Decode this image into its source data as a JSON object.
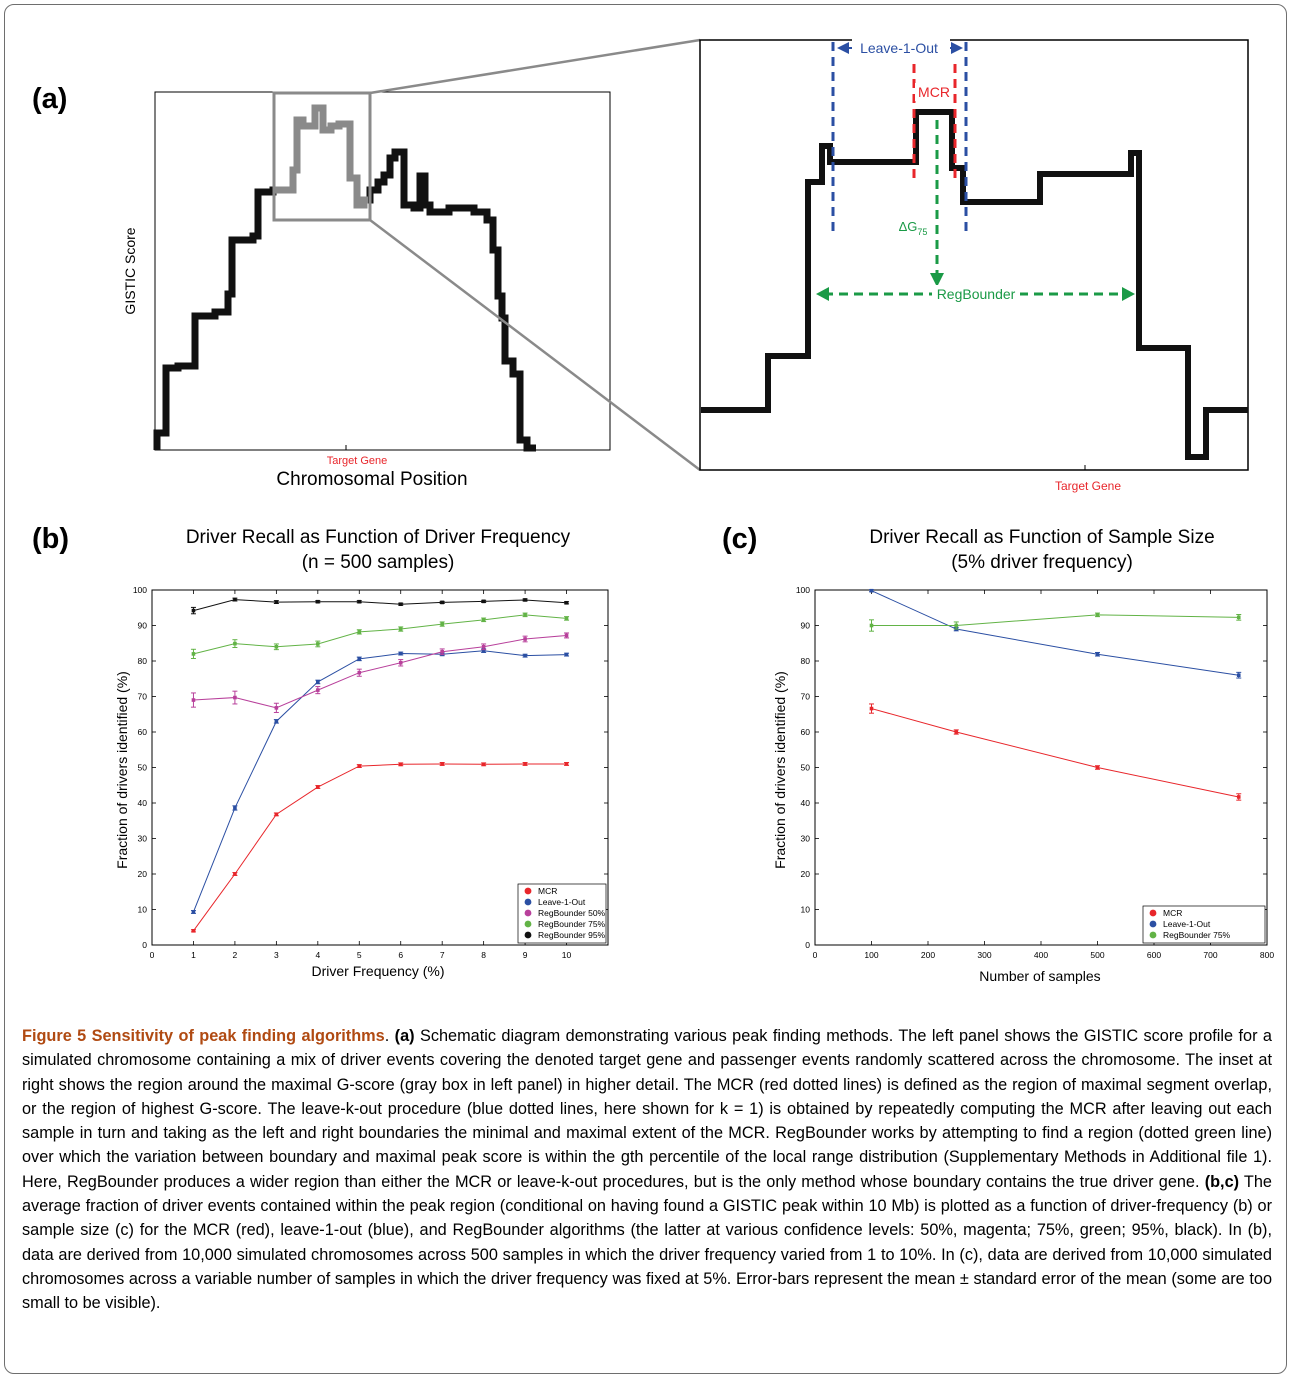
{
  "panel_a": {
    "label": "(a)",
    "y_label": "GISTIC Score",
    "x_label": "Chromosomal Position",
    "target_gene": "Target Gene",
    "inset_target_gene": "Target Gene",
    "leave_label": "Leave-1-Out",
    "mcr_label": "MCR",
    "delta_label": "ΔG",
    "delta_sub": "75",
    "regb_label": "RegBounder"
  },
  "chart_data": [
    {
      "type": "line",
      "panel": "(b)",
      "title": "Driver Recall as Function of Driver Frequency",
      "subtitle": "(n = 500 samples)",
      "xlabel": "Driver Frequency (%)",
      "ylabel": "Fraction of drivers identified (%)",
      "xlim": [
        0,
        11
      ],
      "ylim": [
        0,
        100
      ],
      "xticks": [
        0,
        1,
        2,
        3,
        4,
        5,
        6,
        7,
        8,
        9,
        10
      ],
      "yticks": [
        0,
        10,
        20,
        30,
        40,
        50,
        60,
        70,
        80,
        90,
        100
      ],
      "x": [
        1,
        2,
        3,
        4,
        5,
        6,
        7,
        8,
        9,
        10
      ],
      "legend_position": "bottom-right",
      "series": [
        {
          "name": "MCR",
          "color": "#e8262b",
          "values": [
            4,
            20,
            36.8,
            44.5,
            50.4,
            50.9,
            51.0,
            50.9,
            51.0,
            51.0
          ],
          "err": [
            0.3,
            0.4,
            0.4,
            0.4,
            0.4,
            0.4,
            0.4,
            0.4,
            0.4,
            0.4
          ]
        },
        {
          "name": "Leave-1-Out",
          "color": "#2b4fa3",
          "values": [
            9.3,
            38.6,
            63.0,
            74.1,
            80.6,
            82.1,
            81.9,
            82.9,
            81.5,
            81.8
          ],
          "err": [
            0.4,
            0.6,
            0.5,
            0.5,
            0.5,
            0.4,
            0.4,
            0.5,
            0.4,
            0.4
          ]
        },
        {
          "name": "RegBounder 50%",
          "color": "#b8409b",
          "values": [
            69.0,
            69.7,
            66.8,
            71.8,
            76.7,
            79.5,
            82.6,
            84.0,
            86.2,
            87.2
          ],
          "err": [
            2.0,
            1.8,
            1.3,
            1.0,
            1.0,
            0.9,
            0.8,
            0.8,
            0.8,
            0.7
          ]
        },
        {
          "name": "RegBounder 75%",
          "color": "#62b346",
          "values": [
            82.0,
            84.9,
            84.0,
            84.8,
            88.2,
            89.0,
            90.4,
            91.6,
            93.0,
            92.0
          ],
          "err": [
            1.3,
            1.1,
            0.8,
            0.8,
            0.6,
            0.6,
            0.6,
            0.5,
            0.5,
            0.5
          ]
        },
        {
          "name": "RegBounder 95%",
          "color": "#111111",
          "values": [
            94.2,
            97.3,
            96.6,
            96.7,
            96.7,
            96.0,
            96.5,
            96.8,
            97.2,
            96.4
          ],
          "err": [
            0.9,
            0.4,
            0.4,
            0.3,
            0.3,
            0.3,
            0.3,
            0.3,
            0.3,
            0.3
          ]
        }
      ]
    },
    {
      "type": "line",
      "panel": "(c)",
      "title": "Driver Recall as Function of Sample Size",
      "subtitle": "(5% driver frequency)",
      "xlabel": "Number of samples",
      "ylabel": "Fraction of drivers identified (%)",
      "xlim": [
        0,
        800
      ],
      "ylim": [
        0,
        100
      ],
      "xticks": [
        0,
        100,
        200,
        300,
        400,
        500,
        600,
        700,
        800
      ],
      "yticks": [
        0,
        10,
        20,
        30,
        40,
        50,
        60,
        70,
        80,
        90,
        100
      ],
      "x": [
        100,
        250,
        500,
        750
      ],
      "legend_position": "bottom-right",
      "series": [
        {
          "name": "MCR",
          "color": "#e8262b",
          "values": [
            66.6,
            60.0,
            50.0,
            41.7
          ],
          "err": [
            1.3,
            0.6,
            0.5,
            0.9
          ]
        },
        {
          "name": "Leave-1-Out",
          "color": "#2b4fa3",
          "values": [
            99.8,
            89.0,
            81.9,
            76.0
          ],
          "err": [
            0.3,
            0.5,
            0.5,
            0.8
          ]
        },
        {
          "name": "RegBounder 75%",
          "color": "#62b346",
          "values": [
            90.0,
            90.0,
            93.0,
            92.3
          ],
          "err": [
            1.6,
            1.0,
            0.5,
            0.8
          ]
        }
      ]
    }
  ],
  "caption": {
    "title": "Figure 5 Sensitivity of peak finding algorithms",
    "p1": ". ",
    "a_label": "(a)",
    "p2": " Schematic diagram demonstrating various peak finding methods. The left panel shows the GISTIC score profile for a simulated chromosome containing a mix of driver events covering the denoted target gene and passenger events randomly scattered across the chromosome. The inset at right shows the region around the maximal G-score (gray box in left panel) in higher detail. The MCR (red dotted lines) is defined as the region of maximal segment overlap, or the region of highest G-score. The leave-k-out procedure (blue dotted lines, here shown for k = 1) is obtained by repeatedly computing the MCR after leaving out each sample in turn and taking as the left and right boundaries the minimal and maximal extent of the MCR. RegBounder works by attempting to find a region (dotted green line) over which the variation between boundary and maximal peak score is within the gth percentile of the local range distribution (Supplementary Methods in Additional file 1). Here, RegBounder produces a wider region than either the MCR or leave-k-out procedures, but is the only method whose boundary contains the true driver gene. ",
    "bc_label": "(b,c)",
    "p3": " The average fraction of driver events contained within the peak region (conditional on having found a GISTIC peak within 10 Mb) is plotted as a function of driver-frequency (b) or sample size (c) for the MCR (red), leave-1-out (blue), and RegBounder algorithms (the latter at various confidence levels: 50%, magenta; 75%, green; 95%, black). In (b), data are derived from 10,000 simulated chromosomes across 500 samples in which the driver frequency varied from 1 to 10%. In (c), data are derived from 10,000 simulated chromosomes across a variable number of samples in which the driver frequency was fixed at 5%. Error-bars represent the mean ± standard error of the mean (some are too small to be visible)."
  }
}
